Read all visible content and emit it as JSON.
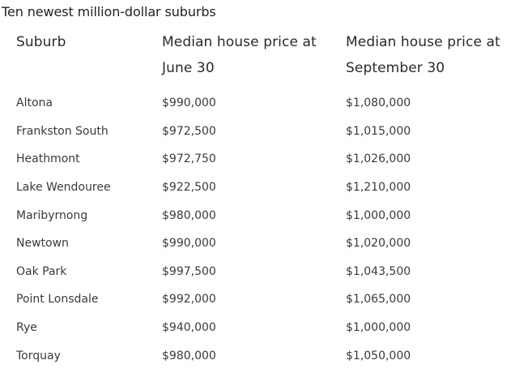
{
  "title": "Ten newest million-dollar suburbs",
  "table": {
    "headers": [
      "Suburb",
      "Median house price at June 30",
      "Median house price at September 30"
    ],
    "rows": [
      [
        "Altona",
        "$990,000",
        "$1,080,000"
      ],
      [
        "Frankston South",
        "$972,500",
        "$1,015,000"
      ],
      [
        "Heathmont",
        "$972,750",
        "$1,026,000"
      ],
      [
        "Lake Wendouree",
        "$922,500",
        "$1,210,000"
      ],
      [
        "Maribyrnong",
        "$980,000",
        "$1,000,000"
      ],
      [
        "Newtown",
        "$990,000",
        "$1,020,000"
      ],
      [
        "Oak Park",
        "$997,500",
        "$1,043,500"
      ],
      [
        "Point Lonsdale",
        "$992,000",
        "$1,065,000"
      ],
      [
        "Rye",
        "$940,000",
        "$1,000,000"
      ],
      [
        "Torquay",
        "$980,000",
        "$1,050,000"
      ]
    ]
  }
}
